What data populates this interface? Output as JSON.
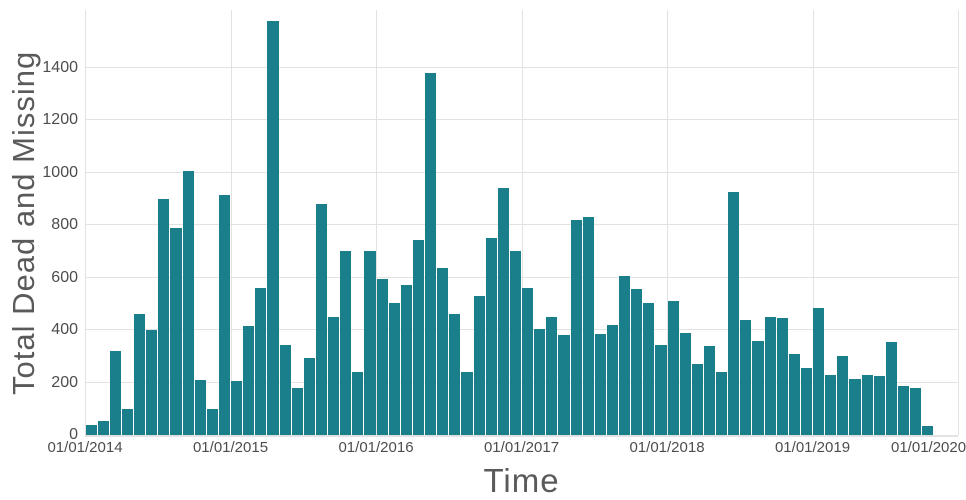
{
  "chart_data": {
    "type": "bar",
    "title": "",
    "xlabel": "Time",
    "ylabel": "Total Dead and Missing",
    "x_tick_labels": [
      "01/01/2014",
      "01/01/2015",
      "01/01/2016",
      "01/01/2017",
      "01/01/2018",
      "01/01/2019",
      "01/01/2020"
    ],
    "y_ticks": [
      0,
      200,
      400,
      600,
      800,
      1000,
      1200,
      1400
    ],
    "ylim": [
      0,
      1620
    ],
    "months_per_tick": 12,
    "bar_color": "#1a7f8a",
    "gridline_color": "#e2e2e2",
    "grid": true,
    "legend": "none",
    "values": [
      40,
      55,
      320,
      100,
      460,
      400,
      900,
      790,
      1005,
      210,
      100,
      915,
      205,
      415,
      560,
      1580,
      345,
      180,
      295,
      880,
      450,
      700,
      240,
      700,
      595,
      505,
      570,
      745,
      1380,
      635,
      460,
      240,
      530,
      750,
      940,
      700,
      560,
      405,
      450,
      380,
      820,
      830,
      385,
      420,
      605,
      555,
      505,
      345,
      510,
      390,
      270,
      340,
      240,
      925,
      440,
      360,
      450,
      445,
      310,
      255,
      485,
      230,
      300,
      215,
      230,
      225,
      355,
      185,
      180,
      35
    ]
  }
}
